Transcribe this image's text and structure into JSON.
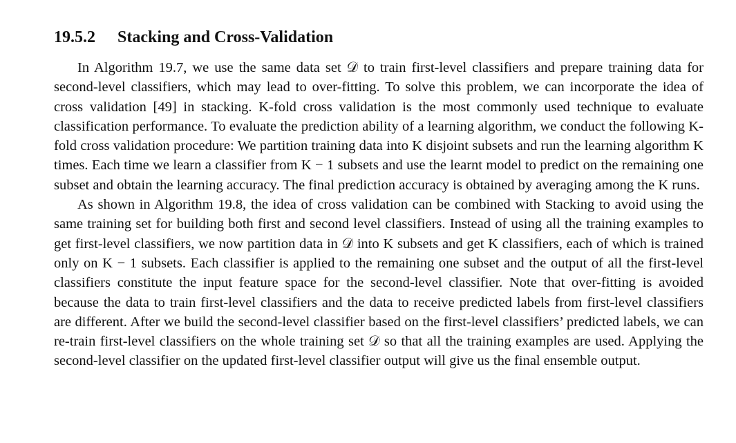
{
  "section": {
    "number": "19.5.2",
    "title": "Stacking and Cross-Validation"
  },
  "paragraphs": [
    "In Algorithm 19.7, we use the same data set 𝒟 to train first-level classifiers and prepare training data for second-level classifiers, which may lead to over-fitting. To solve this problem, we can in­corporate the idea of cross validation [49] in stacking. K-fold cross validation is the most commonly used technique to evaluate classification performance. To evaluate the prediction ability of a learn­ing algorithm, we conduct the following K-fold cross validation procedure: We partition training data into K disjoint subsets and run the learning algorithm K times. Each time we learn a classifier from K − 1 subsets and use the learnt model to predict on the remaining one subset and obtain the learning accuracy. The final prediction accuracy is obtained by averaging among the K runs.",
    "As shown in Algorithm 19.8, the idea of cross validation can be combined with Stacking to avoid using the same training set for building both first and second level classifiers. Instead of using all the training examples to get first-level classifiers, we now partition data in 𝒟 into K subsets and get K classifiers, each of which is trained only on K − 1 subsets. Each classifier is applied to the remaining one subset and the output of all the first-level classifiers constitute the input feature space for the second-level classifier. Note that over-fitting is avoided because the data to train first-level classifiers and the data to receive predicted labels from first-level classifiers are different. After we build the second-level classifier based on the first-level classifiers’ predicted labels, we can re-train first-level classifiers on the whole training set 𝒟 so that all the training examples are used. Applying the second-level classifier on the updated first-level classifier output will give us the final ensemble output."
  ]
}
